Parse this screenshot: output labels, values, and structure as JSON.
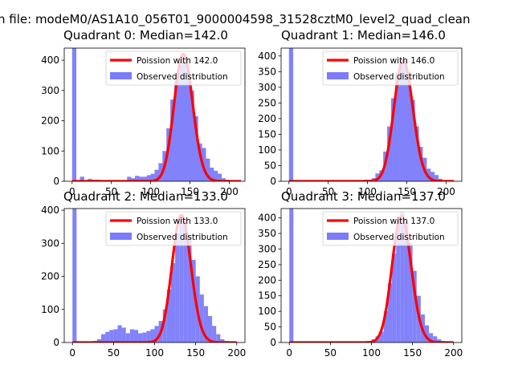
{
  "figure": {
    "suptitle": "n file: modeM0/AS1A10_056T01_9000004598_31528cztM0_level2_quad_clean"
  },
  "colors": {
    "hist": "#7b7bfb",
    "fit": "#ff0000"
  },
  "chart_data": [
    {
      "type": "bar",
      "title": "Quadrant 0: Median=142.0",
      "xlabel": "",
      "ylabel": "",
      "xlim": [
        -10,
        220
      ],
      "ylim": [
        0,
        440
      ],
      "xticks": [
        0,
        50,
        100,
        150,
        200
      ],
      "yticks": [
        0,
        100,
        200,
        300,
        400
      ],
      "grid": false,
      "legend_position": "top-right",
      "bin_width": 5.4,
      "series": [
        {
          "name": "Poission with 142.0",
          "type": "line",
          "lambda": 142.0,
          "peak": 420,
          "x_range": [
            0,
            215
          ]
        },
        {
          "name": "Observed distribution",
          "type": "histogram",
          "bins": [
            {
              "x": 0,
              "count": 440
            },
            {
              "x": 10,
              "count": 15
            },
            {
              "x": 15,
              "count": 3
            },
            {
              "x": 20,
              "count": 8
            },
            {
              "x": 25,
              "count": 5
            },
            {
              "x": 30,
              "count": 5
            },
            {
              "x": 35,
              "count": 3
            },
            {
              "x": 40,
              "count": 3
            },
            {
              "x": 45,
              "count": 3
            },
            {
              "x": 50,
              "count": 3
            },
            {
              "x": 55,
              "count": 3
            },
            {
              "x": 60,
              "count": 2
            },
            {
              "x": 65,
              "count": 3
            },
            {
              "x": 70,
              "count": 15
            },
            {
              "x": 75,
              "count": 10
            },
            {
              "x": 80,
              "count": 18
            },
            {
              "x": 85,
              "count": 15
            },
            {
              "x": 90,
              "count": 15
            },
            {
              "x": 95,
              "count": 20
            },
            {
              "x": 100,
              "count": 25
            },
            {
              "x": 105,
              "count": 38
            },
            {
              "x": 110,
              "count": 60
            },
            {
              "x": 115,
              "count": 100
            },
            {
              "x": 120,
              "count": 175
            },
            {
              "x": 125,
              "count": 270
            },
            {
              "x": 130,
              "count": 340
            },
            {
              "x": 135,
              "count": 385
            },
            {
              "x": 140,
              "count": 400
            },
            {
              "x": 145,
              "count": 365
            },
            {
              "x": 150,
              "count": 300
            },
            {
              "x": 155,
              "count": 215
            },
            {
              "x": 160,
              "count": 125
            },
            {
              "x": 165,
              "count": 110
            },
            {
              "x": 170,
              "count": 75
            },
            {
              "x": 175,
              "count": 45
            },
            {
              "x": 180,
              "count": 35
            },
            {
              "x": 185,
              "count": 25
            },
            {
              "x": 190,
              "count": 10
            },
            {
              "x": 195,
              "count": 5
            },
            {
              "x": 200,
              "count": 3
            },
            {
              "x": 205,
              "count": 2
            }
          ]
        }
      ]
    },
    {
      "type": "bar",
      "title": "Quadrant 1: Median=146.0",
      "xlabel": "",
      "ylabel": "",
      "xlim": [
        -10,
        220
      ],
      "ylim": [
        0,
        425
      ],
      "xticks": [
        0,
        50,
        100,
        150,
        200
      ],
      "yticks": [
        0,
        50,
        100,
        150,
        200,
        250,
        300,
        350,
        400
      ],
      "grid": false,
      "legend_position": "top-right",
      "bin_width": 5.4,
      "series": [
        {
          "name": "Poission with 146.0",
          "type": "line",
          "lambda": 146.0,
          "peak": 385,
          "x_range": [
            0,
            210
          ]
        },
        {
          "name": "Observed distribution",
          "type": "histogram",
          "bins": [
            {
              "x": 0,
              "count": 425
            },
            {
              "x": 90,
              "count": 3
            },
            {
              "x": 95,
              "count": 5
            },
            {
              "x": 100,
              "count": 5
            },
            {
              "x": 105,
              "count": 10
            },
            {
              "x": 110,
              "count": 25
            },
            {
              "x": 115,
              "count": 35
            },
            {
              "x": 120,
              "count": 95
            },
            {
              "x": 125,
              "count": 175
            },
            {
              "x": 130,
              "count": 265
            },
            {
              "x": 135,
              "count": 345
            },
            {
              "x": 140,
              "count": 385
            },
            {
              "x": 145,
              "count": 385
            },
            {
              "x": 150,
              "count": 350
            },
            {
              "x": 155,
              "count": 260
            },
            {
              "x": 160,
              "count": 175
            },
            {
              "x": 165,
              "count": 110
            },
            {
              "x": 170,
              "count": 75
            },
            {
              "x": 175,
              "count": 40
            },
            {
              "x": 180,
              "count": 30
            },
            {
              "x": 185,
              "count": 20
            },
            {
              "x": 190,
              "count": 8
            },
            {
              "x": 195,
              "count": 3
            },
            {
              "x": 200,
              "count": 2
            }
          ]
        }
      ]
    },
    {
      "type": "bar",
      "title": "Quadrant 2: Median=133.0",
      "xlabel": "",
      "ylabel": "",
      "xlim": [
        -10,
        210
      ],
      "ylim": [
        0,
        405
      ],
      "xticks": [
        0,
        50,
        100,
        150,
        200
      ],
      "yticks": [
        0,
        100,
        200,
        300,
        400
      ],
      "grid": false,
      "legend_position": "top-right",
      "bin_width": 5.0,
      "series": [
        {
          "name": "Poission with 133.0",
          "type": "line",
          "lambda": 133.0,
          "peak": 385,
          "x_range": [
            0,
            200
          ]
        },
        {
          "name": "Observed distribution",
          "type": "histogram",
          "bins": [
            {
              "x": 0,
              "count": 405
            },
            {
              "x": 25,
              "count": 5
            },
            {
              "x": 30,
              "count": 10
            },
            {
              "x": 35,
              "count": 25
            },
            {
              "x": 40,
              "count": 32
            },
            {
              "x": 45,
              "count": 38
            },
            {
              "x": 50,
              "count": 40
            },
            {
              "x": 55,
              "count": 52
            },
            {
              "x": 60,
              "count": 45
            },
            {
              "x": 65,
              "count": 28
            },
            {
              "x": 70,
              "count": 40
            },
            {
              "x": 75,
              "count": 38
            },
            {
              "x": 80,
              "count": 28
            },
            {
              "x": 85,
              "count": 30
            },
            {
              "x": 90,
              "count": 35
            },
            {
              "x": 95,
              "count": 40
            },
            {
              "x": 100,
              "count": 50
            },
            {
              "x": 105,
              "count": 65
            },
            {
              "x": 110,
              "count": 100
            },
            {
              "x": 115,
              "count": 160
            },
            {
              "x": 120,
              "count": 240
            },
            {
              "x": 125,
              "count": 330
            },
            {
              "x": 130,
              "count": 380
            },
            {
              "x": 135,
              "count": 375
            },
            {
              "x": 140,
              "count": 325
            },
            {
              "x": 145,
              "count": 250
            },
            {
              "x": 150,
              "count": 200
            },
            {
              "x": 155,
              "count": 145
            },
            {
              "x": 160,
              "count": 110
            },
            {
              "x": 165,
              "count": 80
            },
            {
              "x": 170,
              "count": 50
            },
            {
              "x": 175,
              "count": 25
            },
            {
              "x": 180,
              "count": 10
            },
            {
              "x": 185,
              "count": 5
            },
            {
              "x": 190,
              "count": 3
            }
          ]
        }
      ]
    },
    {
      "type": "bar",
      "title": "Quadrant 3: Median=137.0",
      "xlabel": "",
      "ylabel": "",
      "xlim": [
        -10,
        210
      ],
      "ylim": [
        0,
        430
      ],
      "xticks": [
        0,
        50,
        100,
        150,
        200
      ],
      "yticks": [
        0,
        50,
        100,
        150,
        200,
        250,
        300,
        350,
        400
      ],
      "grid": false,
      "legend_position": "top-right",
      "bin_width": 5.0,
      "series": [
        {
          "name": "Poission with 137.0",
          "type": "line",
          "lambda": 137.0,
          "peak": 405,
          "x_range": [
            0,
            200
          ]
        },
        {
          "name": "Observed distribution",
          "type": "histogram",
          "bins": [
            {
              "x": 0,
              "count": 430
            },
            {
              "x": 75,
              "count": 2
            },
            {
              "x": 80,
              "count": 2
            },
            {
              "x": 90,
              "count": 3
            },
            {
              "x": 95,
              "count": 5
            },
            {
              "x": 100,
              "count": 10
            },
            {
              "x": 105,
              "count": 20
            },
            {
              "x": 110,
              "count": 35
            },
            {
              "x": 115,
              "count": 100
            },
            {
              "x": 120,
              "count": 190
            },
            {
              "x": 125,
              "count": 285
            },
            {
              "x": 130,
              "count": 380
            },
            {
              "x": 135,
              "count": 420
            },
            {
              "x": 140,
              "count": 385
            },
            {
              "x": 145,
              "count": 320
            },
            {
              "x": 150,
              "count": 230
            },
            {
              "x": 155,
              "count": 150
            },
            {
              "x": 160,
              "count": 90
            },
            {
              "x": 165,
              "count": 55
            },
            {
              "x": 170,
              "count": 30
            },
            {
              "x": 175,
              "count": 20
            },
            {
              "x": 180,
              "count": 10
            },
            {
              "x": 185,
              "count": 5
            }
          ]
        }
      ]
    }
  ]
}
